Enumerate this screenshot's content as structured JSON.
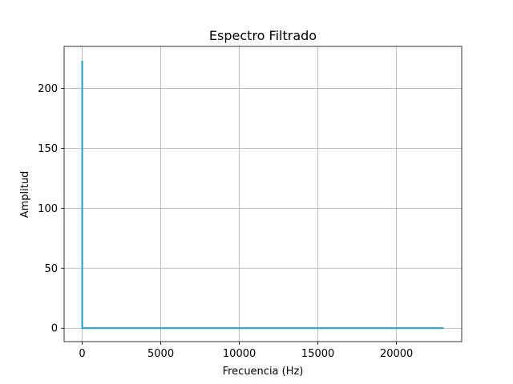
{
  "chart_data": {
    "type": "line",
    "title": "Espectro Filtrado",
    "xlabel": "Frecuencia (Hz)",
    "ylabel": "Amplitud",
    "xlim": [
      -1150,
      24150
    ],
    "ylim": [
      -11.2,
      235
    ],
    "xticks": [
      0,
      5000,
      10000,
      15000,
      20000
    ],
    "yticks": [
      0,
      50,
      100,
      150,
      200
    ],
    "grid": true,
    "series": [
      {
        "color": "#2fa4c6",
        "x": [
          0,
          0,
          0,
          5000,
          10000,
          15000,
          20000,
          23000
        ],
        "y": [
          223,
          0,
          0,
          0,
          0,
          0,
          0,
          0
        ]
      }
    ]
  }
}
